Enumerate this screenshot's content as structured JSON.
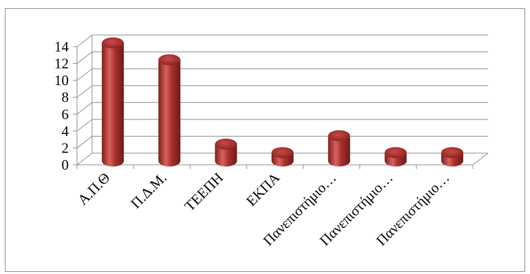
{
  "chart_data": {
    "type": "bar",
    "style": "3d-cylinder",
    "categories": [
      "Α.Π.Θ",
      "Π.Δ.Μ.",
      "ΤΕΕΠΗ",
      "ΕΚΠΑ",
      "Πανεπιστήμιο…",
      "Πανεπιστήμιο…",
      "Πανεπιστήμιο…"
    ],
    "values": [
      14,
      12,
      2,
      1,
      3,
      1,
      1
    ],
    "title": "",
    "xlabel": "",
    "ylabel": "",
    "ylim": [
      0,
      14
    ],
    "yticks": [
      "0",
      "2",
      "4",
      "6",
      "8",
      "10",
      "12",
      "14"
    ],
    "grid": true,
    "legend": "none",
    "colors": {
      "bar_fill": "#a8302e",
      "bar_highlight": "#d9625d",
      "bar_dark": "#6e1a18",
      "grid": "#8c8c8c",
      "frame": "#8c8c8c"
    }
  }
}
